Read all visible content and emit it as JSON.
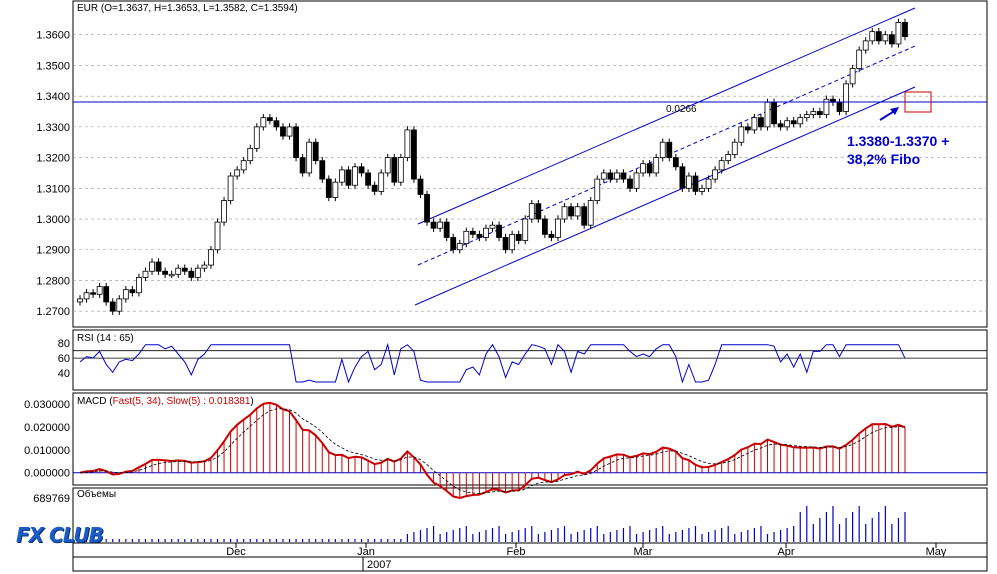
{
  "chart_data": {
    "type": "candlestick",
    "main": {
      "title": "EUR (O=1.3637, H=1.3653, L=1.3582, C=1.3594)",
      "ylim": [
        1.2655,
        1.37
      ],
      "yticks": [
        "1.2700",
        "1.2800",
        "1.2900",
        "1.3000",
        "1.3100",
        "1.3200",
        "1.3300",
        "1.3400",
        "1.3500",
        "1.3600"
      ],
      "horizontal_level": 1.3374,
      "level_label": "0.0266",
      "annotation_line1": "1.3380-1.3370 +",
      "annotation_line2": "38,2% Fibo",
      "closes": [
        1.274,
        1.276,
        1.2755,
        1.278,
        1.273,
        1.27,
        1.274,
        1.277,
        1.276,
        1.281,
        1.283,
        1.286,
        1.283,
        1.282,
        1.282,
        1.284,
        1.283,
        1.281,
        1.284,
        1.285,
        1.29,
        1.299,
        1.306,
        1.314,
        1.316,
        1.319,
        1.323,
        1.33,
        1.333,
        1.332,
        1.33,
        1.327,
        1.33,
        1.32,
        1.315,
        1.325,
        1.319,
        1.313,
        1.307,
        1.312,
        1.316,
        1.311,
        1.317,
        1.315,
        1.311,
        1.309,
        1.315,
        1.32,
        1.312,
        1.32,
        1.329,
        1.313,
        1.308,
        1.299,
        1.297,
        1.299,
        1.294,
        1.29,
        1.292,
        1.296,
        1.295,
        1.294,
        1.297,
        1.298,
        1.294,
        1.29,
        1.295,
        1.293,
        1.3,
        1.305,
        1.3,
        1.295,
        1.294,
        1.3,
        1.304,
        1.301,
        1.304,
        1.298,
        1.306,
        1.313,
        1.315,
        1.313,
        1.315,
        1.313,
        1.31,
        1.315,
        1.318,
        1.315,
        1.32,
        1.325,
        1.32,
        1.317,
        1.31,
        1.314,
        1.309,
        1.31,
        1.313,
        1.316,
        1.319,
        1.321,
        1.325,
        1.33,
        1.329,
        1.333,
        1.33,
        1.338,
        1.331,
        1.33,
        1.332,
        1.331,
        1.333,
        1.334,
        1.335,
        1.334,
        1.339,
        1.338,
        1.335,
        1.344,
        1.349,
        1.355,
        1.358,
        1.361,
        1.358,
        1.36,
        1.357,
        1.364,
        1.3594
      ],
      "channel_labels": [
        "Dec",
        "Jan",
        "Feb",
        "Mar",
        "Apr",
        "May"
      ],
      "year_label": "2007"
    },
    "rsi": {
      "title": "RSI (14 : 65)",
      "yticks": [
        "80",
        "60",
        "40"
      ],
      "ylim": [
        20,
        95
      ],
      "levels": [
        70,
        60
      ]
    },
    "macd": {
      "title_prefix": "MACD (",
      "title_fast": "Fast(5, 34), Slow(5) : 0.018381",
      "title_suffix": ")",
      "yticks": [
        "0.030000",
        "0.020000",
        "0.010000",
        "0.000000"
      ],
      "ylim": [
        -0.0045,
        0.0335
      ]
    },
    "volume": {
      "title": "Объемы",
      "ytick": "689769"
    }
  },
  "logo": {
    "text": "FX CLUB"
  }
}
